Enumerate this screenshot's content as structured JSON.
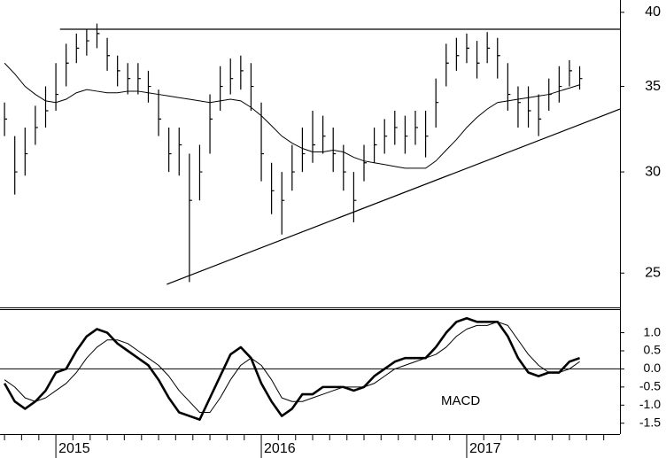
{
  "chart_data": [
    {
      "type": "hlc",
      "x": [
        2014.75,
        2014.8,
        2014.85,
        2014.9,
        2014.95,
        2015,
        2015.05,
        2015.1,
        2015.15,
        2015.2,
        2015.25,
        2015.3,
        2015.35,
        2015.4,
        2015.45,
        2015.5,
        2015.55,
        2015.6,
        2015.65,
        2015.7,
        2015.75,
        2015.8,
        2015.85,
        2015.9,
        2015.95,
        2016,
        2016.05,
        2016.1,
        2016.15,
        2016.2,
        2016.25,
        2016.3,
        2016.35,
        2016.4,
        2016.45,
        2016.5,
        2016.55,
        2016.6,
        2016.65,
        2016.7,
        2016.75,
        2016.8,
        2016.85,
        2016.9,
        2016.95,
        2017,
        2017.05,
        2017.1,
        2017.15,
        2017.2,
        2017.25,
        2017.3,
        2017.35,
        2017.4,
        2017.45,
        2017.5,
        2017.55
      ],
      "high": [
        34,
        32,
        32.5,
        33.8,
        35,
        36.5,
        37.8,
        38.5,
        38.8,
        39.2,
        38.2,
        37,
        36.5,
        36.5,
        36,
        34.8,
        32.5,
        32.5,
        31,
        31.5,
        34.5,
        36.3,
        36.8,
        37,
        36.5,
        34,
        30.5,
        30,
        31.5,
        32.5,
        33.5,
        33.2,
        32.5,
        31.5,
        30,
        31.5,
        32.5,
        33,
        33.5,
        33.2,
        33.5,
        33.5,
        35.5,
        37.8,
        38.2,
        38.5,
        38,
        38.6,
        38.2,
        36.5,
        35,
        35,
        34.5,
        35.5,
        36.3,
        36.7,
        36.3
      ],
      "low": [
        32,
        28.8,
        29.8,
        31.5,
        32.5,
        33.5,
        35,
        36.5,
        37,
        37.5,
        36,
        35,
        34.5,
        34.5,
        34,
        32,
        30,
        29.8,
        24.6,
        28.5,
        31,
        33.5,
        34.5,
        34.8,
        33.5,
        29.5,
        27.8,
        26.8,
        29,
        30,
        30.5,
        31,
        30,
        29,
        27.4,
        29.5,
        30.5,
        31,
        31.5,
        31,
        31.5,
        30.8,
        32.5,
        35,
        36,
        36.5,
        35.5,
        36.5,
        35.5,
        33.5,
        32.5,
        32.5,
        32,
        33.5,
        34,
        35,
        34.8
      ],
      "close": [
        33,
        30,
        31,
        32.5,
        33.5,
        34.5,
        36.5,
        37.5,
        38,
        38.5,
        37,
        36,
        35.5,
        35.5,
        35,
        33,
        31,
        31.5,
        28.5,
        30,
        33,
        35,
        35.5,
        36,
        35,
        31,
        29,
        28.5,
        30,
        31,
        31.5,
        32,
        31,
        30,
        28.5,
        30.5,
        31.5,
        32,
        32.5,
        32,
        32.5,
        32,
        34,
        36.5,
        37,
        37.5,
        36.5,
        37.5,
        37,
        34.5,
        34,
        33.5,
        33,
        34.5,
        35,
        36,
        35.5
      ],
      "ma": [
        36.5,
        35.8,
        35,
        34.5,
        34.1,
        34,
        34.2,
        34.6,
        34.8,
        34.7,
        34.6,
        34.6,
        34.7,
        34.7,
        34.6,
        34.5,
        34.4,
        34.3,
        34.2,
        34.1,
        34,
        34.1,
        34.2,
        34.1,
        33.7,
        33.2,
        32.6,
        32,
        31.6,
        31.3,
        31.1,
        31.1,
        31.2,
        31.1,
        30.8,
        30.6,
        30.5,
        30.4,
        30.3,
        30.2,
        30.2,
        30.2,
        30.6,
        31.2,
        31.8,
        32.5,
        33.1,
        33.6,
        34,
        34.1,
        34.2,
        34.3,
        34.4,
        34.5,
        34.7,
        34.9,
        35.1
      ],
      "lines": [
        {
          "x": [
            2015.02,
            2017.746
          ],
          "y": [
            38.8,
            38.8
          ]
        },
        {
          "x": [
            2015.54,
            2017.746
          ],
          "y": [
            24.5,
            33.6
          ]
        }
      ],
      "color": "#000000",
      "log_scale": true,
      "xlim": [
        2014.728,
        2017.746
      ],
      "ylim": [
        23.5,
        40.9
      ],
      "yticks": [
        25,
        30,
        35,
        40
      ]
    },
    {
      "type": "line",
      "annotation": "MACD",
      "x": [
        2014.75,
        2014.8,
        2014.85,
        2014.9,
        2014.95,
        2015,
        2015.05,
        2015.1,
        2015.15,
        2015.2,
        2015.25,
        2015.3,
        2015.35,
        2015.4,
        2015.45,
        2015.5,
        2015.55,
        2015.6,
        2015.65,
        2015.7,
        2015.75,
        2015.8,
        2015.85,
        2015.9,
        2015.95,
        2016,
        2016.05,
        2016.1,
        2016.15,
        2016.2,
        2016.25,
        2016.3,
        2016.35,
        2016.4,
        2016.45,
        2016.5,
        2016.55,
        2016.6,
        2016.65,
        2016.7,
        2016.75,
        2016.8,
        2016.85,
        2016.9,
        2016.95,
        2017,
        2017.05,
        2017.1,
        2017.15,
        2017.2,
        2017.25,
        2017.3,
        2017.35,
        2017.4,
        2017.45,
        2017.5,
        2017.55
      ],
      "series": [
        {
          "color": "#000000",
          "width": 2.6,
          "values": [
            -0.4,
            -0.9,
            -1.1,
            -0.9,
            -0.6,
            -0.1,
            0.0,
            0.5,
            0.9,
            1.1,
            1.0,
            0.7,
            0.5,
            0.3,
            0.1,
            -0.3,
            -0.8,
            -1.2,
            -1.3,
            -1.4,
            -0.8,
            -0.2,
            0.4,
            0.6,
            0.3,
            -0.4,
            -0.9,
            -1.3,
            -1.1,
            -0.7,
            -0.7,
            -0.5,
            -0.5,
            -0.5,
            -0.6,
            -0.5,
            -0.2,
            0.0,
            0.2,
            0.3,
            0.3,
            0.3,
            0.6,
            1.0,
            1.3,
            1.4,
            1.3,
            1.3,
            1.3,
            0.9,
            0.3,
            -0.1,
            -0.2,
            -0.1,
            -0.1,
            0.2,
            0.3
          ]
        },
        {
          "color": "#000000",
          "width": 1,
          "values": [
            -0.3,
            -0.5,
            -0.8,
            -0.9,
            -0.8,
            -0.6,
            -0.4,
            -0.1,
            0.3,
            0.6,
            0.8,
            0.8,
            0.7,
            0.5,
            0.3,
            0.1,
            -0.2,
            -0.6,
            -0.9,
            -1.2,
            -1.2,
            -0.8,
            -0.3,
            0.1,
            0.3,
            0.1,
            -0.3,
            -0.8,
            -0.9,
            -0.9,
            -0.8,
            -0.7,
            -0.6,
            -0.5,
            -0.5,
            -0.5,
            -0.4,
            -0.2,
            0.0,
            0.1,
            0.2,
            0.3,
            0.4,
            0.6,
            0.9,
            1.1,
            1.2,
            1.2,
            1.3,
            1.2,
            0.8,
            0.4,
            0.1,
            -0.1,
            -0.1,
            0.0,
            0.2
          ]
        }
      ],
      "hline": 0,
      "xlim": [
        2014.728,
        2017.746
      ],
      "ylim": [
        -1.8,
        1.65
      ],
      "yticks": [
        {
          "value": 1,
          "label": "1.0"
        },
        {
          "value": 0.5,
          "label": "0.5"
        },
        {
          "value": 0,
          "label": "0.0"
        },
        {
          "value": -0.5,
          "label": "-0.5"
        },
        {
          "value": -1,
          "label": "-1.0"
        },
        {
          "value": -1.5,
          "label": "-1.5"
        }
      ],
      "xticks": [
        2015,
        2016,
        2017
      ],
      "xminorticks": [
        2014.75,
        2014.833,
        2014.917,
        2015.083,
        2015.167,
        2015.25,
        2015.333,
        2015.417,
        2015.5,
        2015.583,
        2015.667,
        2015.75,
        2015.833,
        2015.917,
        2016.083,
        2016.167,
        2016.25,
        2016.333,
        2016.417,
        2016.5,
        2016.583,
        2016.667,
        2016.75,
        2016.833,
        2016.917,
        2017.083,
        2017.167,
        2017.25,
        2017.333,
        2017.417,
        2017.5,
        2017.583,
        2017.667
      ]
    }
  ]
}
